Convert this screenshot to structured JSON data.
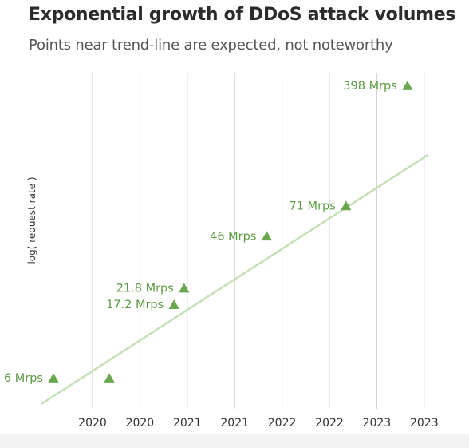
{
  "chart_data": {
    "type": "scatter",
    "title": "Exponential growth of DDoS attack volumes",
    "subtitle": "Points near trend-line are expected, not noteworthy",
    "xlabel": "",
    "ylabel": "log( request rate )",
    "x_tick_labels": [
      "2020",
      "2020",
      "2021",
      "2021",
      "2022",
      "2022",
      "2023",
      "2023"
    ],
    "y_scale": "log",
    "y_unit": "Mrps",
    "grid": "vertical",
    "series": [
      {
        "marker": "triangle",
        "points": [
          {
            "x": 2019.65,
            "y": 6,
            "label": "6 Mrps"
          },
          {
            "x": 2020.15,
            "y": 6,
            "label": ""
          },
          {
            "x": 2020.73,
            "y": 17.2,
            "label": "17.2 Mrps"
          },
          {
            "x": 2020.82,
            "y": 21.8,
            "label": "21.8 Mrps"
          },
          {
            "x": 2021.56,
            "y": 46,
            "label": "46 Mrps"
          },
          {
            "x": 2022.27,
            "y": 71,
            "label": "71 Mrps"
          },
          {
            "x": 2022.82,
            "y": 398,
            "label": "398 Mrps"
          }
        ],
        "trend_line": {
          "x": [
            2019.55,
            2023.0
          ],
          "y": [
            4.2,
            148
          ]
        }
      }
    ],
    "colors": {
      "marker": "#6aa84f",
      "label": "#5d9b45",
      "trend": "#c5dfb6",
      "grid": "#d0d0d0"
    }
  }
}
